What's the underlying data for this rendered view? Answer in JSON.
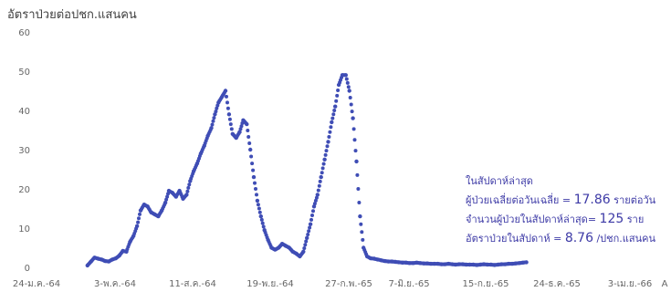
{
  "chart_data": {
    "type": "scatter",
    "title": "",
    "ylabel": "อัตราป่วยต่อปชก.แสนคน",
    "xlabel": "",
    "ylim": [
      0,
      60
    ],
    "yticks": [
      0,
      10,
      20,
      30,
      40,
      50,
      60
    ],
    "xticks": [
      "24-ม.ค.-64",
      "3-พ.ค.-64",
      "11-ส.ค.-64",
      "19-พ.ย.-64",
      "27-ก.พ.-65",
      "7-มิ.ย.-65",
      "15-ก.ย.-65",
      "24-ธ.ค.-65",
      "3-เม.ย.-66",
      "A"
    ],
    "grid": false,
    "marker_color": "#3f4db5",
    "x": [
      "2021-04-06",
      "2021-04-11",
      "2021-04-16",
      "2021-04-21",
      "2021-04-26",
      "2021-05-01",
      "2021-05-06",
      "2021-05-11",
      "2021-05-16",
      "2021-05-21",
      "2021-05-26",
      "2021-05-31",
      "2021-06-05",
      "2021-06-10",
      "2021-06-15",
      "2021-06-20",
      "2021-06-25",
      "2021-06-30",
      "2021-07-05",
      "2021-07-10",
      "2021-07-15",
      "2021-07-20",
      "2021-07-25",
      "2021-07-30",
      "2021-08-04",
      "2021-08-09",
      "2021-08-14",
      "2021-08-19",
      "2021-08-24",
      "2021-08-29",
      "2021-09-03",
      "2021-09-08",
      "2021-09-13",
      "2021-09-18",
      "2021-09-23",
      "2021-09-28",
      "2021-10-03",
      "2021-10-08",
      "2021-10-13",
      "2021-10-18",
      "2021-10-23",
      "2021-10-28",
      "2021-11-02",
      "2021-11-07",
      "2021-11-12",
      "2021-11-17",
      "2021-11-22",
      "2021-11-27",
      "2021-12-02",
      "2021-12-07",
      "2021-12-12",
      "2021-12-17",
      "2021-12-22",
      "2021-12-27",
      "2022-01-01",
      "2022-01-06",
      "2022-01-11",
      "2022-01-16",
      "2022-01-21",
      "2022-01-26",
      "2022-01-31",
      "2022-02-05",
      "2022-02-10",
      "2022-02-15",
      "2022-02-20",
      "2022-02-25",
      "2022-03-02",
      "2022-03-07",
      "2022-03-12",
      "2022-03-17",
      "2022-03-22",
      "2022-03-27",
      "2022-04-01",
      "2022-04-06",
      "2022-04-11",
      "2022-04-16",
      "2022-04-21",
      "2022-04-26",
      "2022-05-01",
      "2022-05-06",
      "2022-05-11",
      "2022-05-16",
      "2022-05-21",
      "2022-05-26",
      "2022-05-31",
      "2022-06-05",
      "2022-06-10",
      "2022-06-15",
      "2022-06-20",
      "2022-06-25",
      "2022-06-30",
      "2022-07-05",
      "2022-07-10",
      "2022-07-15",
      "2022-07-20",
      "2022-07-25",
      "2022-07-30",
      "2022-08-04",
      "2022-08-09",
      "2022-08-14",
      "2022-08-19",
      "2022-08-24",
      "2022-08-29",
      "2022-09-03",
      "2022-09-08",
      "2022-09-13",
      "2022-09-18",
      "2022-09-23",
      "2022-09-28",
      "2022-10-03",
      "2022-10-08",
      "2022-10-13",
      "2022-10-18",
      "2022-10-23",
      "2022-10-28",
      "2022-11-02",
      "2022-11-07",
      "2022-11-12",
      "2022-11-17",
      "2022-11-22",
      "2022-11-27",
      "2022-12-02",
      "2022-12-07",
      "2022-12-12",
      "2022-12-17"
    ],
    "values": [
      0.5,
      1.5,
      2.5,
      2.2,
      2.0,
      1.6,
      1.5,
      2.0,
      2.3,
      3.0,
      4.2,
      4.0,
      6.5,
      8.0,
      10.5,
      14.5,
      16.0,
      15.5,
      14.0,
      13.5,
      13.0,
      14.5,
      16.5,
      19.5,
      19.0,
      18.0,
      19.5,
      17.5,
      18.5,
      22.0,
      24.5,
      26.5,
      29.0,
      31.0,
      33.5,
      35.5,
      39.0,
      42.0,
      43.5,
      45.0,
      39.0,
      34.0,
      33.0,
      34.5,
      37.5,
      36.5,
      30.0,
      23.0,
      17.0,
      13.0,
      9.5,
      7.0,
      5.0,
      4.5,
      5.0,
      6.0,
      5.5,
      5.0,
      4.0,
      3.5,
      2.8,
      4.0,
      7.5,
      11.0,
      15.5,
      18.5,
      23.0,
      27.5,
      32.0,
      37.0,
      41.0,
      46.5,
      49.0,
      49.0,
      45.0,
      38.0,
      27.0,
      13.0,
      5.0,
      2.8,
      2.3,
      2.2,
      2.0,
      1.8,
      1.6,
      1.5,
      1.5,
      1.4,
      1.3,
      1.2,
      1.2,
      1.1,
      1.1,
      1.2,
      1.1,
      1.0,
      1.0,
      0.9,
      0.9,
      0.9,
      0.8,
      0.8,
      0.9,
      0.8,
      0.7,
      0.8,
      0.8,
      0.7,
      0.7,
      0.7,
      0.6,
      0.7,
      0.8,
      0.7,
      0.7,
      0.6,
      0.7,
      0.8,
      0.8,
      0.9,
      0.9,
      1.0,
      1.1,
      1.2,
      1.3
    ]
  },
  "annotation": {
    "heading": "ในสัปดาห์ล่าสุด",
    "line1_label": "ผู้ป่วยเฉลี่ยต่อวันเฉลี่ย = ",
    "line1_value": "17.86",
    "line1_unit": " รายต่อวัน",
    "line2_label": "จำนวนผู้ป่วยในสัปดาห์ล่าสุด= ",
    "line2_value": "125",
    "line2_unit": " ราย",
    "line3_label": "อัตราป่วยในสัปดาห์ = ",
    "line3_value": "8.76",
    "line3_unit": " /ปชก.แสนคน"
  }
}
